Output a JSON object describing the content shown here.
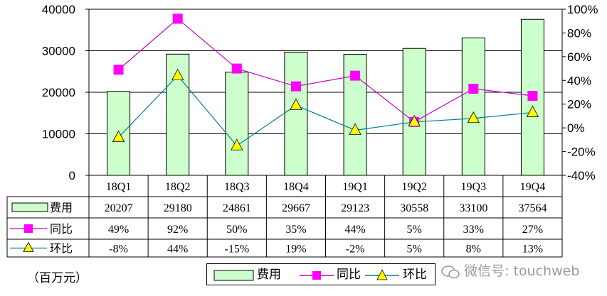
{
  "chart_data": {
    "type": "bar",
    "categories": [
      "18Q1",
      "18Q2",
      "18Q3",
      "18Q4",
      "19Q1",
      "19Q2",
      "19Q3",
      "19Q4"
    ],
    "series": [
      {
        "name": "费用",
        "kind": "bar",
        "axis": "left",
        "values": [
          20207,
          29180,
          24861,
          29667,
          29123,
          30558,
          33100,
          37564
        ],
        "display": [
          "20207",
          "29180",
          "24861",
          "29667",
          "29123",
          "30558",
          "33100",
          "37564"
        ]
      },
      {
        "name": "同比",
        "kind": "line",
        "axis": "right",
        "values": [
          49,
          92,
          50,
          35,
          44,
          5,
          33,
          27
        ],
        "display": [
          "49%",
          "92%",
          "50%",
          "35%",
          "44%",
          "5%",
          "33%",
          "27%"
        ]
      },
      {
        "name": "环比",
        "kind": "line",
        "axis": "right",
        "values": [
          -8,
          44,
          -15,
          19,
          -2,
          5,
          8,
          13
        ],
        "display": [
          "-8%",
          "44%",
          "-15%",
          "19%",
          "-2%",
          "5%",
          "8%",
          "13%"
        ]
      }
    ],
    "ylim_left": [
      0,
      40000
    ],
    "yticks_left": [
      "0",
      "10000",
      "20000",
      "30000",
      "40000"
    ],
    "ylim_right": [
      -40,
      100
    ],
    "yticks_right": [
      "-40%",
      "-20%",
      "0%",
      "20%",
      "40%",
      "60%",
      "80%",
      "100%"
    ],
    "grid": true,
    "unit_label": "（百万元）",
    "legend": [
      "费用",
      "同比",
      "环比"
    ],
    "colors": {
      "bar_fill": "#ccffcc",
      "yoy": "#ff00ff",
      "yoy_line": "#cc00cc",
      "qoq_fill": "#ffff00",
      "qoq_line": "#00808f"
    }
  },
  "watermark": "微信号: touchweb"
}
